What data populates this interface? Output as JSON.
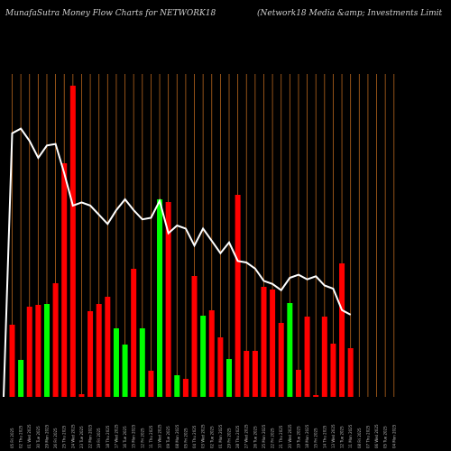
{
  "header": {
    "left": "MunafaSutra  Money Flow  Charts for NETWORK18",
    "right": "(Network18  Media  &amp;  Investments Limit"
  },
  "colors": {
    "background": "#000000",
    "grid": "#b5651d",
    "up": "#00ff00",
    "down": "#ff0000",
    "price_line": "#ffffff"
  },
  "chart_data": {
    "type": "bar",
    "description_of_axes": "volume bars with overlaid price line",
    "categories": [
      "05 Fri 2025",
      "02 Thu 2025",
      "01 Wed 2025",
      "30 Tue 2025",
      "29 Mon 2025",
      "26 Fri 2025",
      "25 Thu 2025",
      "24 Wed 2025",
      "23 Tue 2025",
      "22 Mon 2025",
      "19 Fri 2025",
      "18 Thu 2025",
      "17 Wed 2025",
      "16 Tue 2025",
      "15 Mon 2025",
      "12 Fri 2025",
      "11 Thu 2025",
      "10 Wed 2025",
      "09 Tue 2025",
      "08 Mon 2025",
      "05 Fri 2025",
      "04 Thu 2025",
      "03 Wed 2025",
      "02 Tue 2025",
      "01 Mon 2025",
      "29 Fri 2025",
      "28 Thu 2025",
      "27 Wed 2025",
      "26 Tue 2025",
      "25 Mon 2025",
      "22 Fri 2025",
      "21 Thu 2025",
      "20 Wed 2025",
      "19 Tue 2025",
      "18 Mon 2025",
      "15 Fri 2025",
      "14 Thu 2025",
      "13 Wed 2025",
      "12 Tue 2025",
      "11 Mon 2025",
      "08 Fri 2025",
      "07 Thu 2025",
      "06 Wed 2025",
      "05 Tue 2025",
      "04 Mon 2025"
    ],
    "volume": [
      80,
      41,
      100,
      102,
      103,
      126,
      259,
      345,
      3,
      95,
      103,
      111,
      76,
      58,
      142,
      76,
      29,
      219,
      216,
      24,
      20,
      134,
      90,
      96,
      66,
      42,
      224,
      51,
      51,
      122,
      119,
      82,
      104,
      30,
      89,
      2,
      89,
      59,
      148,
      54,
      0,
      0,
      0,
      0,
      0
    ],
    "up": [
      false,
      true,
      false,
      false,
      true,
      false,
      false,
      false,
      false,
      false,
      false,
      false,
      true,
      true,
      false,
      true,
      false,
      true,
      false,
      true,
      false,
      false,
      true,
      false,
      false,
      true,
      false,
      false,
      false,
      false,
      false,
      false,
      true,
      false,
      false,
      false,
      false,
      false,
      false,
      false,
      false,
      false,
      false,
      false,
      false
    ],
    "price": [
      66.5,
      66.8,
      66.0,
      64.9,
      65.7,
      65.8,
      63.9,
      61.8,
      62.0,
      61.8,
      61.2,
      60.6,
      61.5,
      62.2,
      61.5,
      60.9,
      61.0,
      62.1,
      60.0,
      60.5,
      60.3,
      59.2,
      60.3,
      59.5,
      58.7,
      59.4,
      58.2,
      58.1,
      57.7,
      56.9,
      56.7,
      56.3,
      57.1,
      57.3,
      57.0,
      57.2,
      56.6,
      56.4,
      55.0,
      54.7
    ],
    "ylim_volume": [
      0,
      345
    ],
    "ylim_price": [
      52,
      70
    ],
    "grid": true
  }
}
